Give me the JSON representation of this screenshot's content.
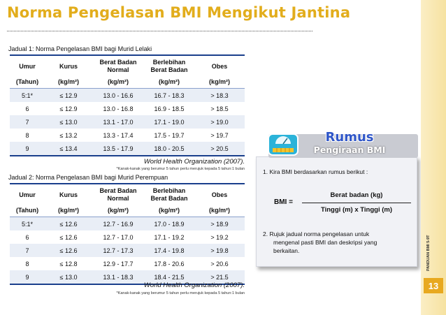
{
  "title": "Norma Pengelasan BMI Mengikut Jantina",
  "tables": [
    {
      "caption": "Jadual 1: Norma Pengelasan BMI bagi Murid Lelaki",
      "headers": [
        "Umur",
        "Kurus",
        "Berat Badan Normal",
        "Berlebihan Berat Badan",
        "Obes"
      ],
      "units": [
        "(Tahun)",
        "(kg/m²)",
        "(kg/m²)",
        "(kg/m²)",
        "(kg/m²)"
      ],
      "rows": [
        [
          "5:1*",
          "≤ 12.9",
          "13.0 - 16.6",
          "16.7 - 18.3",
          "> 18.3"
        ],
        [
          "6",
          "≤ 12.9",
          "13.0 - 16.8",
          "16.9 - 18.5",
          "> 18.5"
        ],
        [
          "7",
          "≤ 13.0",
          "13.1 - 17.0",
          "17.1 - 19.0",
          "> 19.0"
        ],
        [
          "8",
          "≤ 13.2",
          "13.3 - 17.4",
          "17.5 - 19.7",
          "> 19.7"
        ],
        [
          "9",
          "≤ 13.4",
          "13.5 - 17.9",
          "18.0 - 20.5",
          "> 20.5"
        ]
      ],
      "source": "World Health Organization (2007).",
      "footnote": "*Kanak-kanak yang berumur 5 tahun perlu merujuk kepada 5 tahun:1 bulan"
    },
    {
      "caption": "Jadual 2: Norma Pengelasan BMI bagi Murid Perempuan",
      "headers": [
        "Umur",
        "Kurus",
        "Berat Badan Normal",
        "Berlebihan Berat Badan",
        "Obes"
      ],
      "units": [
        "(Tahun)",
        "(kg/m²)",
        "(kg/m²)",
        "(kg/m²)",
        "(kg/m²)"
      ],
      "rows": [
        [
          "5:1*",
          "≤ 12.6",
          "12.7 - 16.9",
          "17.0 - 18.9",
          "> 18.9"
        ],
        [
          "6",
          "≤ 12.6",
          "12.7 - 17.0",
          "17.1 - 19.2",
          "> 19.2"
        ],
        [
          "7",
          "≤ 12.6",
          "12.7 - 17.3",
          "17.4 - 19.8",
          "> 19.8"
        ],
        [
          "8",
          "≤ 12.8",
          "12.9 - 17.7",
          "17.8 - 20.6",
          "> 20.6"
        ],
        [
          "9",
          "≤ 13.0",
          "13.1 - 18.3",
          "18.4 - 21.5",
          "> 21.5"
        ]
      ],
      "source": "World Health Organization (2007).",
      "footnote": "*Kanak-kanak yang berumur 5 tahun perlu merujuk kepada 5 tahun:1 bulan"
    }
  ],
  "rumus": {
    "title": "Rumus",
    "subtitle": "Pengiraan BMI",
    "step1": "1.  Kira BMI berdasarkan rumus berikut :",
    "bmi_label": "BMI  =",
    "numerator": "Berat badan (kg)",
    "denominator": "Tinggi (m)  x  Tinggi (m)",
    "step2_line1": "2.  Rujuk jadual norma pengelasan untuk",
    "step2_line2": "mengenal pasti BMI dan deskripsi yang",
    "step2_line3": "berkaitan."
  },
  "sidebar": {
    "label": "PANDUAN BMI 5-9T",
    "page_number": "13"
  },
  "colors": {
    "title": "#e2ad1c",
    "table_rule": "#1a3f8c",
    "rumus_title": "#2f56c8",
    "page_number_bg": "#e8a91f"
  },
  "icons": {
    "rumus_icon": "weighing-scale-icon"
  }
}
